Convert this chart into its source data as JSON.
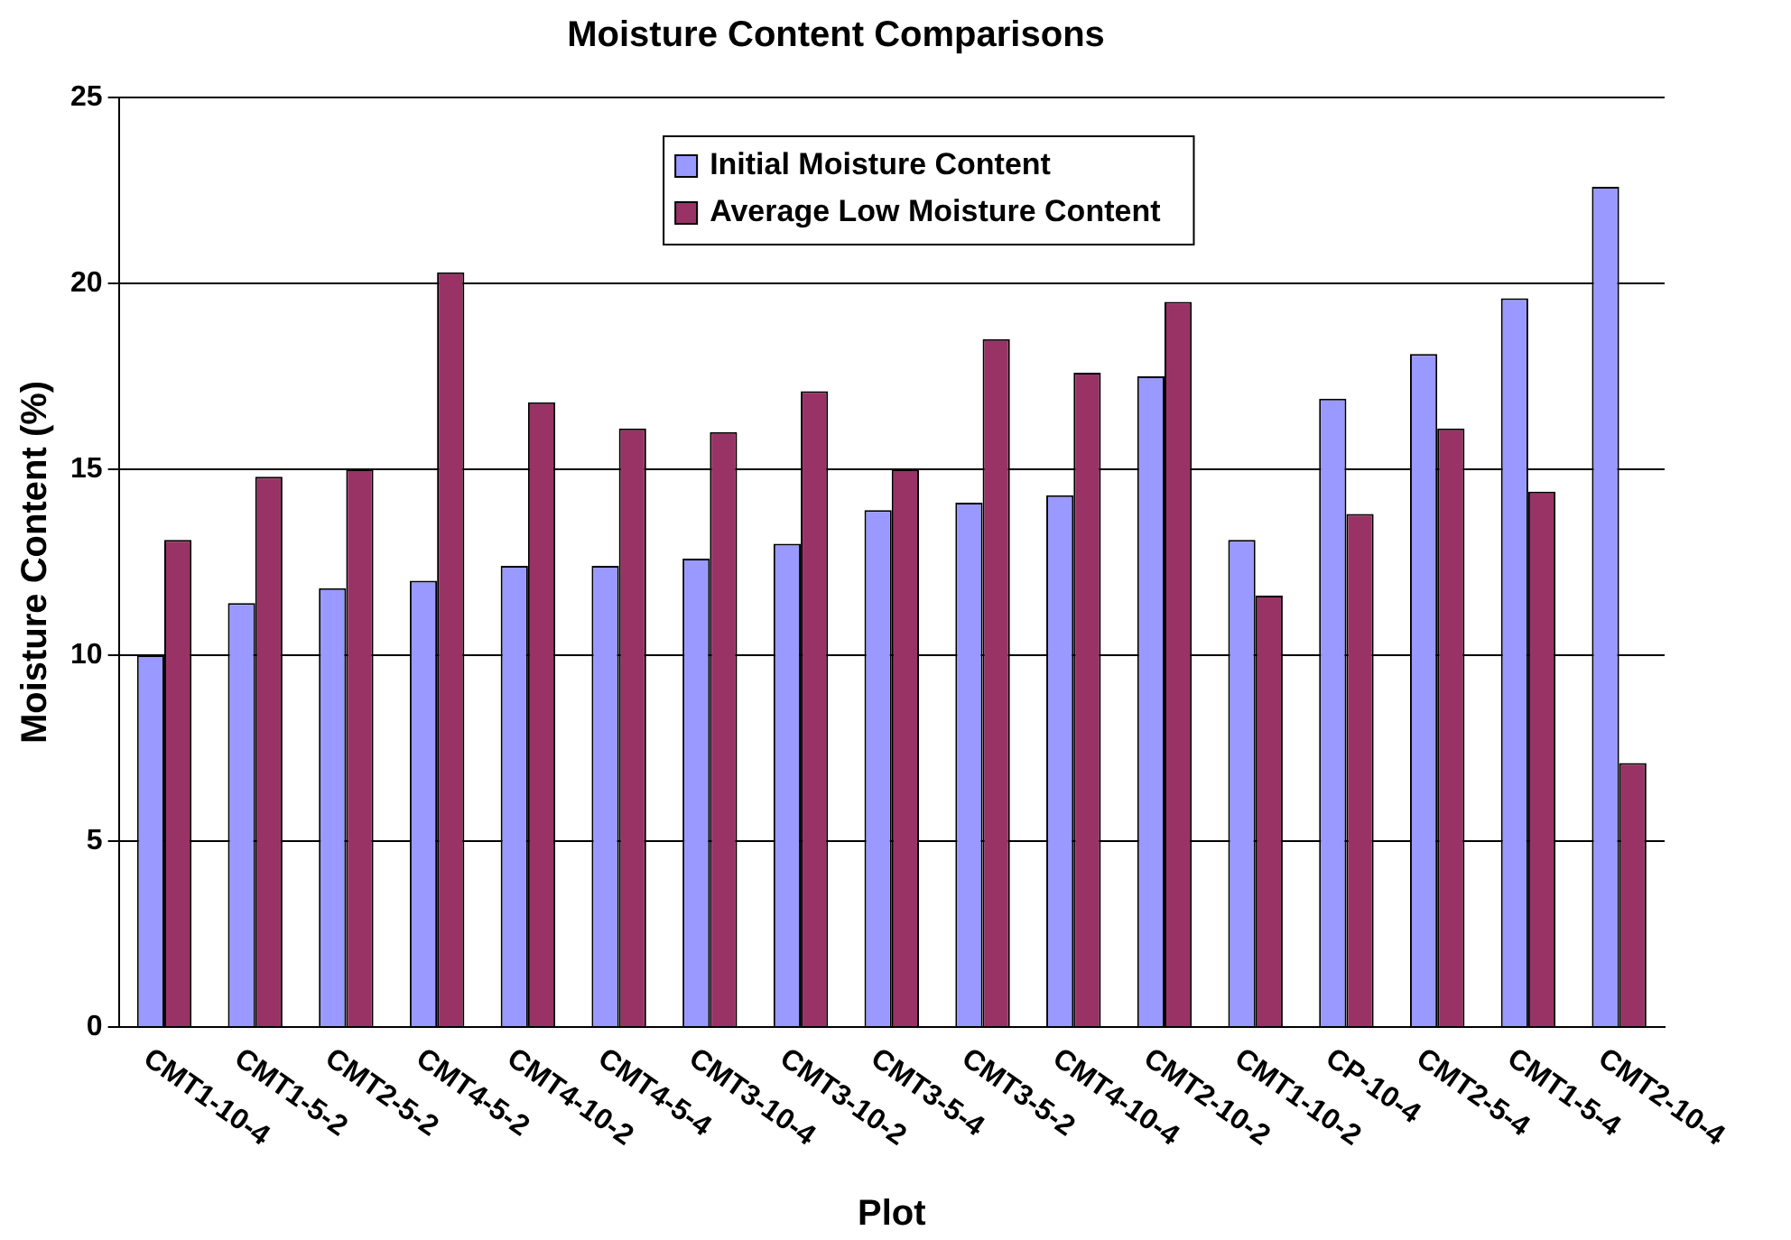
{
  "chart_data": {
    "type": "bar",
    "title": "Moisture Content Comparisons",
    "xlabel": "Plot",
    "ylabel": "Moisture Content (%)",
    "categories": [
      "CMT1-10-4",
      "CMT1-5-2",
      "CMT2-5-2",
      "CMT4-5-2",
      "CMT4-10-2",
      "CMT4-5-4",
      "CMT3-10-4",
      "CMT3-10-2",
      "CMT3-5-4",
      "CMT3-5-2",
      "CMT4-10-4",
      "CMT2-10-2",
      "CMT1-10-2",
      "CP-10-4",
      "CMT2-5-4",
      "CMT1-5-4",
      "CMT2-10-4"
    ],
    "series": [
      {
        "name": "Initial Moisture Content",
        "color": "#9999ff",
        "values": [
          10.0,
          11.4,
          11.8,
          12.0,
          12.4,
          12.4,
          12.6,
          13.0,
          13.9,
          14.1,
          14.3,
          17.5,
          13.1,
          16.9,
          18.1,
          19.6,
          22.6
        ]
      },
      {
        "name": "Average Low Moisture Content",
        "color": "#993366",
        "values": [
          13.1,
          14.8,
          15.0,
          20.3,
          16.8,
          16.1,
          16.0,
          17.1,
          15.0,
          18.5,
          17.6,
          19.5,
          11.6,
          13.8,
          16.1,
          14.4,
          7.1
        ]
      }
    ],
    "ylim": [
      0,
      25
    ],
    "yticks": [
      0,
      5,
      10,
      15,
      20,
      25
    ],
    "grid": "y",
    "legend": "top"
  }
}
